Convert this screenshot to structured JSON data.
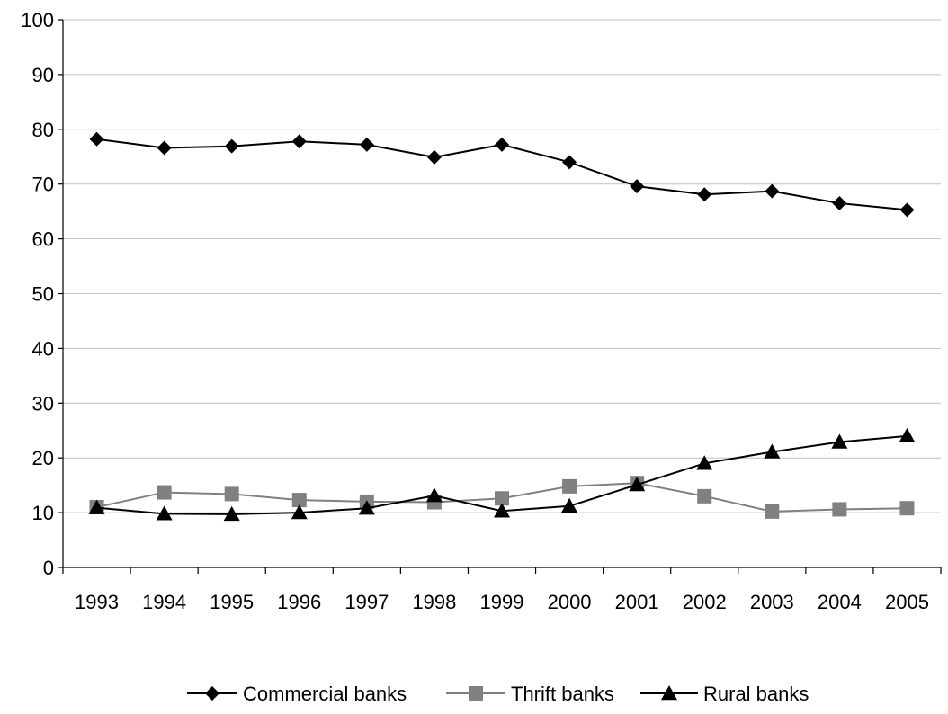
{
  "chart_data": {
    "type": "line",
    "title": "",
    "xlabel": "",
    "ylabel": "",
    "categories": [
      "1993",
      "1994",
      "1995",
      "1996",
      "1997",
      "1998",
      "1999",
      "2000",
      "2001",
      "2002",
      "2003",
      "2004",
      "2005"
    ],
    "ylim": [
      0,
      100
    ],
    "yticks": [
      "0",
      "10",
      "20",
      "30",
      "40",
      "50",
      "60",
      "70",
      "80",
      "90",
      "100"
    ],
    "grid": true,
    "legend_position": "bottom",
    "series": [
      {
        "name": "Commercial banks",
        "marker": "diamond",
        "color": "#000000",
        "values": [
          78.2,
          76.6,
          76.9,
          77.8,
          77.2,
          74.9,
          77.2,
          74.0,
          69.6,
          68.1,
          68.7,
          66.5,
          65.3
        ]
      },
      {
        "name": "Thrift banks",
        "marker": "square",
        "color": "#808080",
        "values": [
          11.0,
          13.7,
          13.4,
          12.3,
          12.0,
          11.9,
          12.6,
          14.8,
          15.4,
          13.0,
          10.2,
          10.6,
          10.8
        ]
      },
      {
        "name": "Rural banks",
        "marker": "triangle",
        "color": "#000000",
        "values": [
          10.9,
          9.8,
          9.7,
          10.0,
          10.8,
          13.1,
          10.3,
          11.2,
          15.1,
          19.0,
          21.1,
          22.9,
          24.0
        ]
      }
    ]
  }
}
